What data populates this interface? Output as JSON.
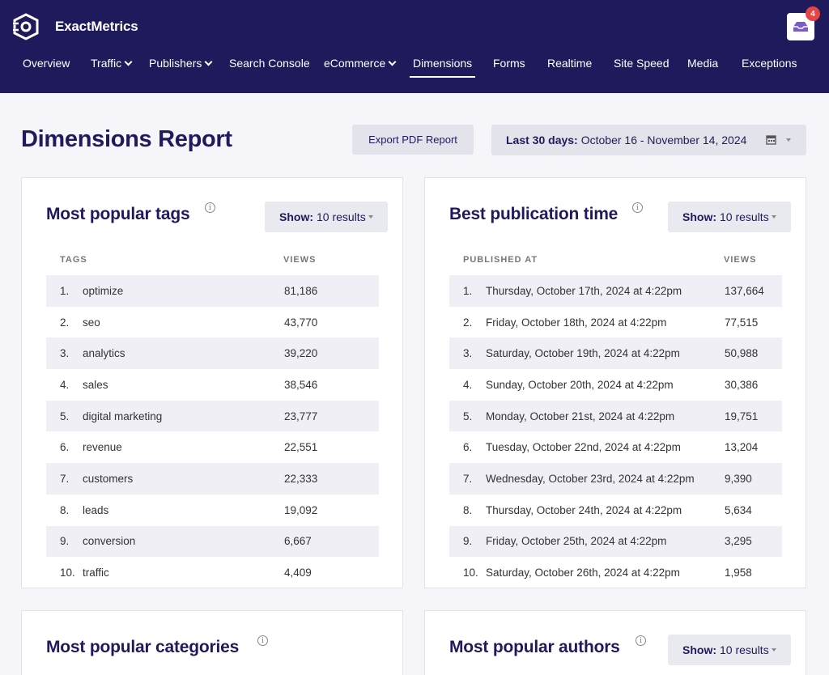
{
  "app": {
    "name": "ExactMetrics",
    "notification_count": "4"
  },
  "nav": [
    {
      "label": "Overview",
      "dropdown": false,
      "active": false
    },
    {
      "label": "Traffic",
      "dropdown": true,
      "active": false
    },
    {
      "label": "Publishers",
      "dropdown": true,
      "active": false
    },
    {
      "label": "Search Console",
      "dropdown": false,
      "active": false
    },
    {
      "label": "eCommerce",
      "dropdown": true,
      "active": false
    },
    {
      "label": "Dimensions",
      "dropdown": false,
      "active": true
    },
    {
      "label": "Forms",
      "dropdown": false,
      "active": false
    },
    {
      "label": "Realtime",
      "dropdown": false,
      "active": false
    },
    {
      "label": "Site Speed",
      "dropdown": false,
      "active": false
    },
    {
      "label": "Media",
      "dropdown": false,
      "active": false
    },
    {
      "label": "Exceptions",
      "dropdown": false,
      "active": false
    }
  ],
  "page": {
    "title": "Dimensions Report",
    "export_label": "Export PDF Report",
    "date_prefix": "Last 30 days:",
    "date_range": "October 16 - November 14, 2024"
  },
  "panels": {
    "tags": {
      "title": "Most popular tags",
      "show_prefix": "Show:",
      "show_value": "10 results",
      "col_label": "TAGS",
      "col_views": "VIEWS",
      "rows": [
        {
          "num": "1.",
          "name": "optimize",
          "views": "81,186"
        },
        {
          "num": "2.",
          "name": "seo",
          "views": "43,770"
        },
        {
          "num": "3.",
          "name": "analytics",
          "views": "39,220"
        },
        {
          "num": "4.",
          "name": "sales",
          "views": "38,546"
        },
        {
          "num": "5.",
          "name": "digital marketing",
          "views": "23,777"
        },
        {
          "num": "6.",
          "name": "revenue",
          "views": "22,551"
        },
        {
          "num": "7.",
          "name": "customers",
          "views": "22,333"
        },
        {
          "num": "8.",
          "name": "leads",
          "views": "19,092"
        },
        {
          "num": "9.",
          "name": "conversion",
          "views": "6,667"
        },
        {
          "num": "10.",
          "name": "traffic",
          "views": "4,409"
        }
      ]
    },
    "pubtime": {
      "title": "Best publication time",
      "show_prefix": "Show:",
      "show_value": "10 results",
      "col_label": "PUBLISHED AT",
      "col_views": "VIEWS",
      "rows": [
        {
          "num": "1.",
          "name": "Thursday, October 17th, 2024 at 4:22pm",
          "views": "137,664"
        },
        {
          "num": "2.",
          "name": "Friday, October 18th, 2024 at 4:22pm",
          "views": "77,515"
        },
        {
          "num": "3.",
          "name": "Saturday, October 19th, 2024 at 4:22pm",
          "views": "50,988"
        },
        {
          "num": "4.",
          "name": "Sunday, October 20th, 2024 at 4:22pm",
          "views": "30,386"
        },
        {
          "num": "5.",
          "name": "Monday, October 21st, 2024 at 4:22pm",
          "views": "19,751"
        },
        {
          "num": "6.",
          "name": "Tuesday, October 22nd, 2024 at 4:22pm",
          "views": "13,204"
        },
        {
          "num": "7.",
          "name": "Wednesday, October 23rd, 2024 at 4:22pm",
          "views": "9,390"
        },
        {
          "num": "8.",
          "name": "Thursday, October 24th, 2024 at 4:22pm",
          "views": "5,634"
        },
        {
          "num": "9.",
          "name": "Friday, October 25th, 2024 at 4:22pm",
          "views": "3,295"
        },
        {
          "num": "10.",
          "name": "Saturday, October 26th, 2024 at 4:22pm",
          "views": "1,958"
        }
      ]
    },
    "categories": {
      "title": "Most popular categories"
    },
    "authors": {
      "title": "Most popular authors",
      "show_prefix": "Show:",
      "show_value": "10 results"
    }
  },
  "colors": {
    "header_bg": "#1f1a5c",
    "accent": "#1f1a5c",
    "badge": "#e54545",
    "row_shade": "#efeff5"
  },
  "icons": [
    "logo-icon",
    "inbox-icon",
    "chevron-down-icon",
    "info-icon",
    "calendar-icon",
    "caret-down-icon"
  ]
}
